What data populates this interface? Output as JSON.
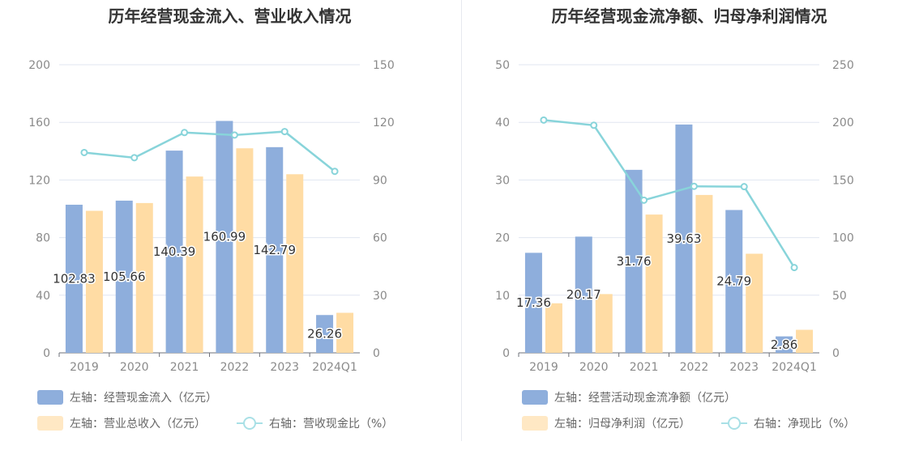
{
  "colors": {
    "primary_bar": "#8eaedc",
    "secondary_bar": "#ffdca4",
    "line": "#88d4da",
    "grid": "#e0e6f1",
    "axis": "#8a8a8a",
    "title": "#333333"
  },
  "chart_data": [
    {
      "type": "bar",
      "title": "历年经营现金流入、营业收入情况",
      "categories": [
        "2019",
        "2020",
        "2021",
        "2022",
        "2023",
        "2024Q1"
      ],
      "left_axis": {
        "ylim": [
          0,
          200
        ],
        "ticks": [
          "0",
          "40",
          "80",
          "120",
          "160",
          "200"
        ]
      },
      "right_axis": {
        "ylim": [
          0,
          150
        ],
        "ticks": [
          "0",
          "30",
          "60",
          "90",
          "120",
          "150"
        ]
      },
      "series": [
        {
          "name": "左轴：经营现金流入（亿元）",
          "type": "bar",
          "axis": "left",
          "values": [
            102.83,
            105.66,
            140.39,
            160.99,
            142.79,
            26.26
          ],
          "labels": [
            "102.83",
            "105.66",
            "140.39",
            "160.99",
            "142.79",
            "26.26"
          ]
        },
        {
          "name": "左轴：营业总收入（亿元）",
          "type": "bar",
          "axis": "left",
          "values": [
            98.6,
            104.0,
            122.4,
            142.0,
            124.0,
            27.8
          ]
        },
        {
          "name": "右轴：营收现金比（%）",
          "type": "line",
          "axis": "right",
          "values": [
            104.3,
            101.6,
            114.7,
            113.4,
            115.2,
            94.5
          ]
        }
      ],
      "legend_position": "bottom"
    },
    {
      "type": "bar",
      "title": "历年经营现金流净额、归母净利润情况",
      "categories": [
        "2019",
        "2020",
        "2021",
        "2022",
        "2023",
        "2024Q1"
      ],
      "left_axis": {
        "ylim": [
          0,
          50
        ],
        "ticks": [
          "0",
          "10",
          "20",
          "30",
          "40",
          "50"
        ]
      },
      "right_axis": {
        "ylim": [
          0,
          250
        ],
        "ticks": [
          "0",
          "50",
          "100",
          "150",
          "200",
          "250"
        ]
      },
      "series": [
        {
          "name": "左轴：经营活动现金流净额（亿元）",
          "type": "bar",
          "axis": "left",
          "values": [
            17.36,
            20.17,
            31.76,
            39.63,
            24.79,
            2.86
          ],
          "labels": [
            "17.36",
            "20.17",
            "31.76",
            "39.63",
            "24.79",
            "2.86"
          ]
        },
        {
          "name": "左轴：归母净利润（亿元）",
          "type": "bar",
          "axis": "left",
          "values": [
            8.6,
            10.2,
            24.0,
            27.4,
            17.2,
            4.0
          ]
        },
        {
          "name": "右轴：净现比（%）",
          "type": "line",
          "axis": "right",
          "values": [
            202,
            197.5,
            132.5,
            144.5,
            144.2,
            74
          ]
        }
      ],
      "legend_position": "bottom"
    }
  ]
}
